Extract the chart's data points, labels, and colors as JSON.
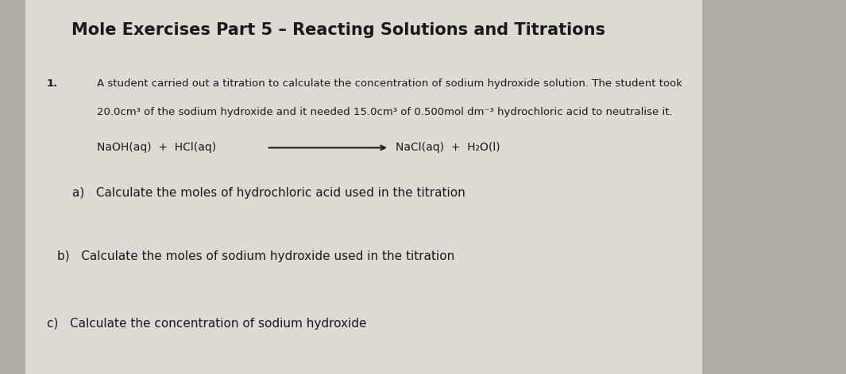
{
  "title": "Mole Exercises Part 5 – Reacting Solutions and Titrations",
  "title_fontsize": 15,
  "background_color": "#b0ada6",
  "paper_color": "#dedad3",
  "number_label": "1.",
  "intro_line1": "A student carried out a titration to calculate the concentration of sodium hydroxide solution. The student took",
  "intro_line2": "20.0cm³ of the sodium hydroxide and it needed 15.0cm³ of 0.500mol dm⁻³ hydrochloric acid to neutralise it.",
  "eq_reactants": "NaOH(aq)  +  HCl(aq)",
  "eq_products": "NaCl(aq)  +  H₂O(l)",
  "part_a": "a)   Calculate the moles of hydrochloric acid used in the titration",
  "part_b": "b)   Calculate the moles of sodium hydroxide used in the titration",
  "part_c": "c)   Calculate the concentration of sodium hydroxide",
  "text_color": "#1a1a1a",
  "intro_fontsize": 9.5,
  "equation_fontsize": 10,
  "parts_fontsize": 11
}
